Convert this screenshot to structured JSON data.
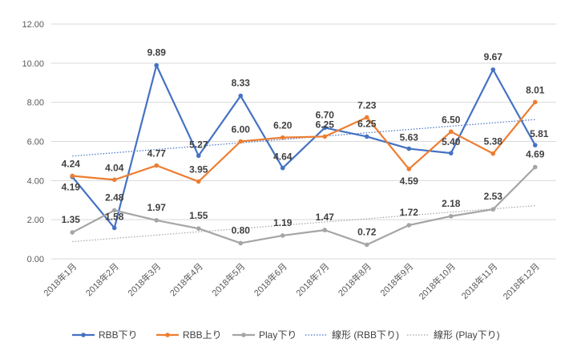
{
  "chart_data": {
    "type": "line",
    "title": "",
    "xlabel": "",
    "ylabel": "",
    "ylim": [
      0,
      12
    ],
    "yticks": [
      "0.00",
      "2.00",
      "4.00",
      "6.00",
      "8.00",
      "10.00",
      "12.00"
    ],
    "categories": [
      "2018年1月",
      "2018年2月",
      "2018年3月",
      "2018年4月",
      "2018年5月",
      "2018年6月",
      "2018年7月",
      "2018年8月",
      "2018年9月",
      "2018年10月",
      "2018年11月",
      "2018年12月"
    ],
    "series": [
      {
        "name": "RBB下り",
        "color": "#4472C4",
        "values": [
          4.19,
          1.58,
          9.89,
          5.27,
          8.33,
          4.64,
          6.7,
          6.25,
          5.63,
          5.4,
          9.67,
          5.81
        ],
        "labels": [
          "4.19",
          "1.58",
          "9.89",
          "5.27",
          "8.33",
          "4.64",
          "6.70",
          "6.25",
          "5.63",
          "5.40",
          "9.67",
          "5.81"
        ]
      },
      {
        "name": "RBB上り",
        "color": "#ED7D31",
        "values": [
          4.24,
          4.04,
          4.77,
          3.95,
          6.0,
          6.2,
          6.25,
          7.23,
          4.59,
          6.5,
          5.38,
          8.01
        ],
        "labels": [
          "4.24",
          "4.04",
          "4.77",
          "3.95",
          "6.00",
          "6.20",
          "6.25",
          "7.23",
          "4.59",
          "6.50",
          "5.38",
          "8.01"
        ]
      },
      {
        "name": "Play下り",
        "color": "#A5A5A5",
        "values": [
          1.35,
          2.48,
          1.97,
          1.55,
          0.8,
          1.19,
          1.47,
          0.72,
          1.72,
          2.18,
          2.53,
          4.69
        ],
        "labels": [
          "1.35",
          "2.48",
          "1.97",
          "1.55",
          "0.80",
          "1.19",
          "1.47",
          "0.72",
          "1.72",
          "2.18",
          "2.53",
          "4.69"
        ]
      }
    ],
    "trendlines": [
      {
        "name": "線形 (RBB下り)",
        "color": "#4472C4",
        "start": 5.25,
        "end": 7.12
      },
      {
        "name": "線形 (Play下り)",
        "color": "#A5A5A5",
        "start": 0.88,
        "end": 2.72
      }
    ],
    "legend_position": "bottom",
    "grid": true
  }
}
